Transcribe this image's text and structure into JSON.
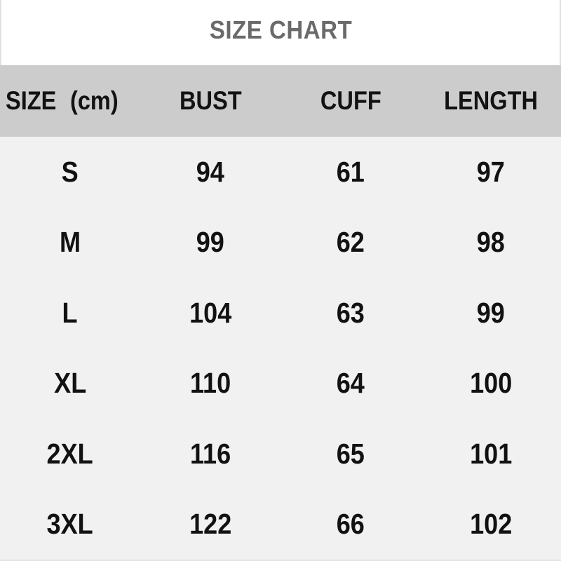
{
  "page": {
    "title": "SIZE CHART"
  },
  "colors": {
    "title_band_bg": "#ffffff",
    "title_text": "#6a6a6a",
    "header_bg": "#cccccc",
    "body_bg": "#f1f1f1",
    "cell_text": "#121212",
    "edge_border": "#e0e0e0"
  },
  "table": {
    "unit": "cm",
    "headers": {
      "size": "SIZE (cm)",
      "bust": "BUST",
      "cuff": "CUFF",
      "length": "LENGTH"
    },
    "rows": [
      {
        "size": "S",
        "bust": "94",
        "cuff": "61",
        "length": "97"
      },
      {
        "size": "M",
        "bust": "99",
        "cuff": "62",
        "length": "98"
      },
      {
        "size": "L",
        "bust": "104",
        "cuff": "63",
        "length": "99"
      },
      {
        "size": "XL",
        "bust": "110",
        "cuff": "64",
        "length": "100"
      },
      {
        "size": "2XL",
        "bust": "116",
        "cuff": "65",
        "length": "101"
      },
      {
        "size": "3XL",
        "bust": "122",
        "cuff": "66",
        "length": "102"
      }
    ]
  },
  "chart_data": {
    "type": "table",
    "title": "SIZE CHART",
    "columns": [
      "SIZE (cm)",
      "BUST",
      "CUFF",
      "LENGTH"
    ],
    "rows": [
      [
        "S",
        94,
        61,
        97
      ],
      [
        "M",
        99,
        62,
        98
      ],
      [
        "L",
        104,
        63,
        99
      ],
      [
        "XL",
        110,
        64,
        100
      ],
      [
        "2XL",
        116,
        65,
        101
      ],
      [
        "3XL",
        122,
        66,
        102
      ]
    ],
    "unit": "cm",
    "layout": {
      "header_background": "#cccccc",
      "body_background": "#f1f1f1",
      "grid": "off"
    }
  }
}
